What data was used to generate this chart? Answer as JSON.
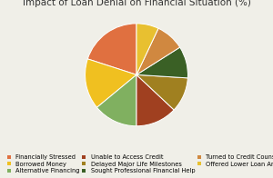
{
  "title": "Impact of Loan Denial on Financial Situation (%)",
  "labels": [
    "Financially Stressed",
    "Borrowed Money",
    "Alternative Financing",
    "Unable to Access Credit",
    "Delayed Major Life Milestones",
    "Sought Professional Financial Help",
    "Turned to Credit Counseling",
    "Offered Lower Loan Amount"
  ],
  "values": [
    20,
    16,
    14,
    13,
    11,
    10,
    9,
    7
  ],
  "colors": [
    "#E07040",
    "#F0C020",
    "#80B060",
    "#A04020",
    "#A08020",
    "#3A6025",
    "#D08840",
    "#E8C030"
  ],
  "title_fontsize": 7.5,
  "legend_fontsize": 4.8,
  "startangle": 90,
  "bg_color": "#F0EFE8"
}
